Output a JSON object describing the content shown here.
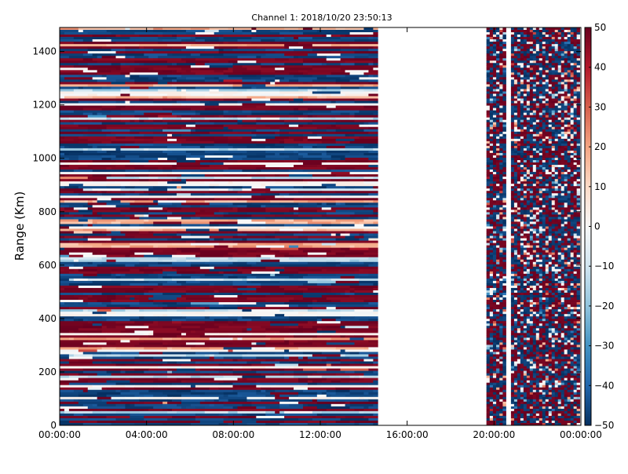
{
  "chart_data": {
    "type": "heatmap",
    "title": "Channel 1: 2018/10/20 23:50:13",
    "ylabel": "Range (Km)",
    "xlabel": "",
    "x_ticks": [
      "00:00:00",
      "04:00:00",
      "08:00:00",
      "12:00:00",
      "16:00:00",
      "20:00:00",
      "00:00:00"
    ],
    "x_range_hours": [
      0,
      24
    ],
    "y_ticks": [
      0,
      200,
      400,
      600,
      800,
      1000,
      1200,
      1400
    ],
    "y_range_km": [
      0,
      1490
    ],
    "colorbar": {
      "colormap": "RdBu_r",
      "range": [
        -50,
        50
      ],
      "ticks": [
        50,
        40,
        30,
        20,
        10,
        0,
        -10,
        -20,
        -30,
        -40,
        -50
      ],
      "tick_labels": [
        "50",
        "40",
        "30",
        "20",
        "10",
        "0",
        "−10",
        "−20",
        "−30",
        "−40",
        "−50"
      ]
    },
    "data_segments": [
      {
        "start_hour": 0.0,
        "end_hour": 14.65,
        "pattern": "range-banded"
      },
      {
        "start_hour": 19.65,
        "end_hour": 20.55,
        "pattern": "noise"
      },
      {
        "start_hour": 20.78,
        "end_hour": 23.95,
        "pattern": "noise"
      }
    ],
    "grid": false,
    "legend": "none"
  }
}
